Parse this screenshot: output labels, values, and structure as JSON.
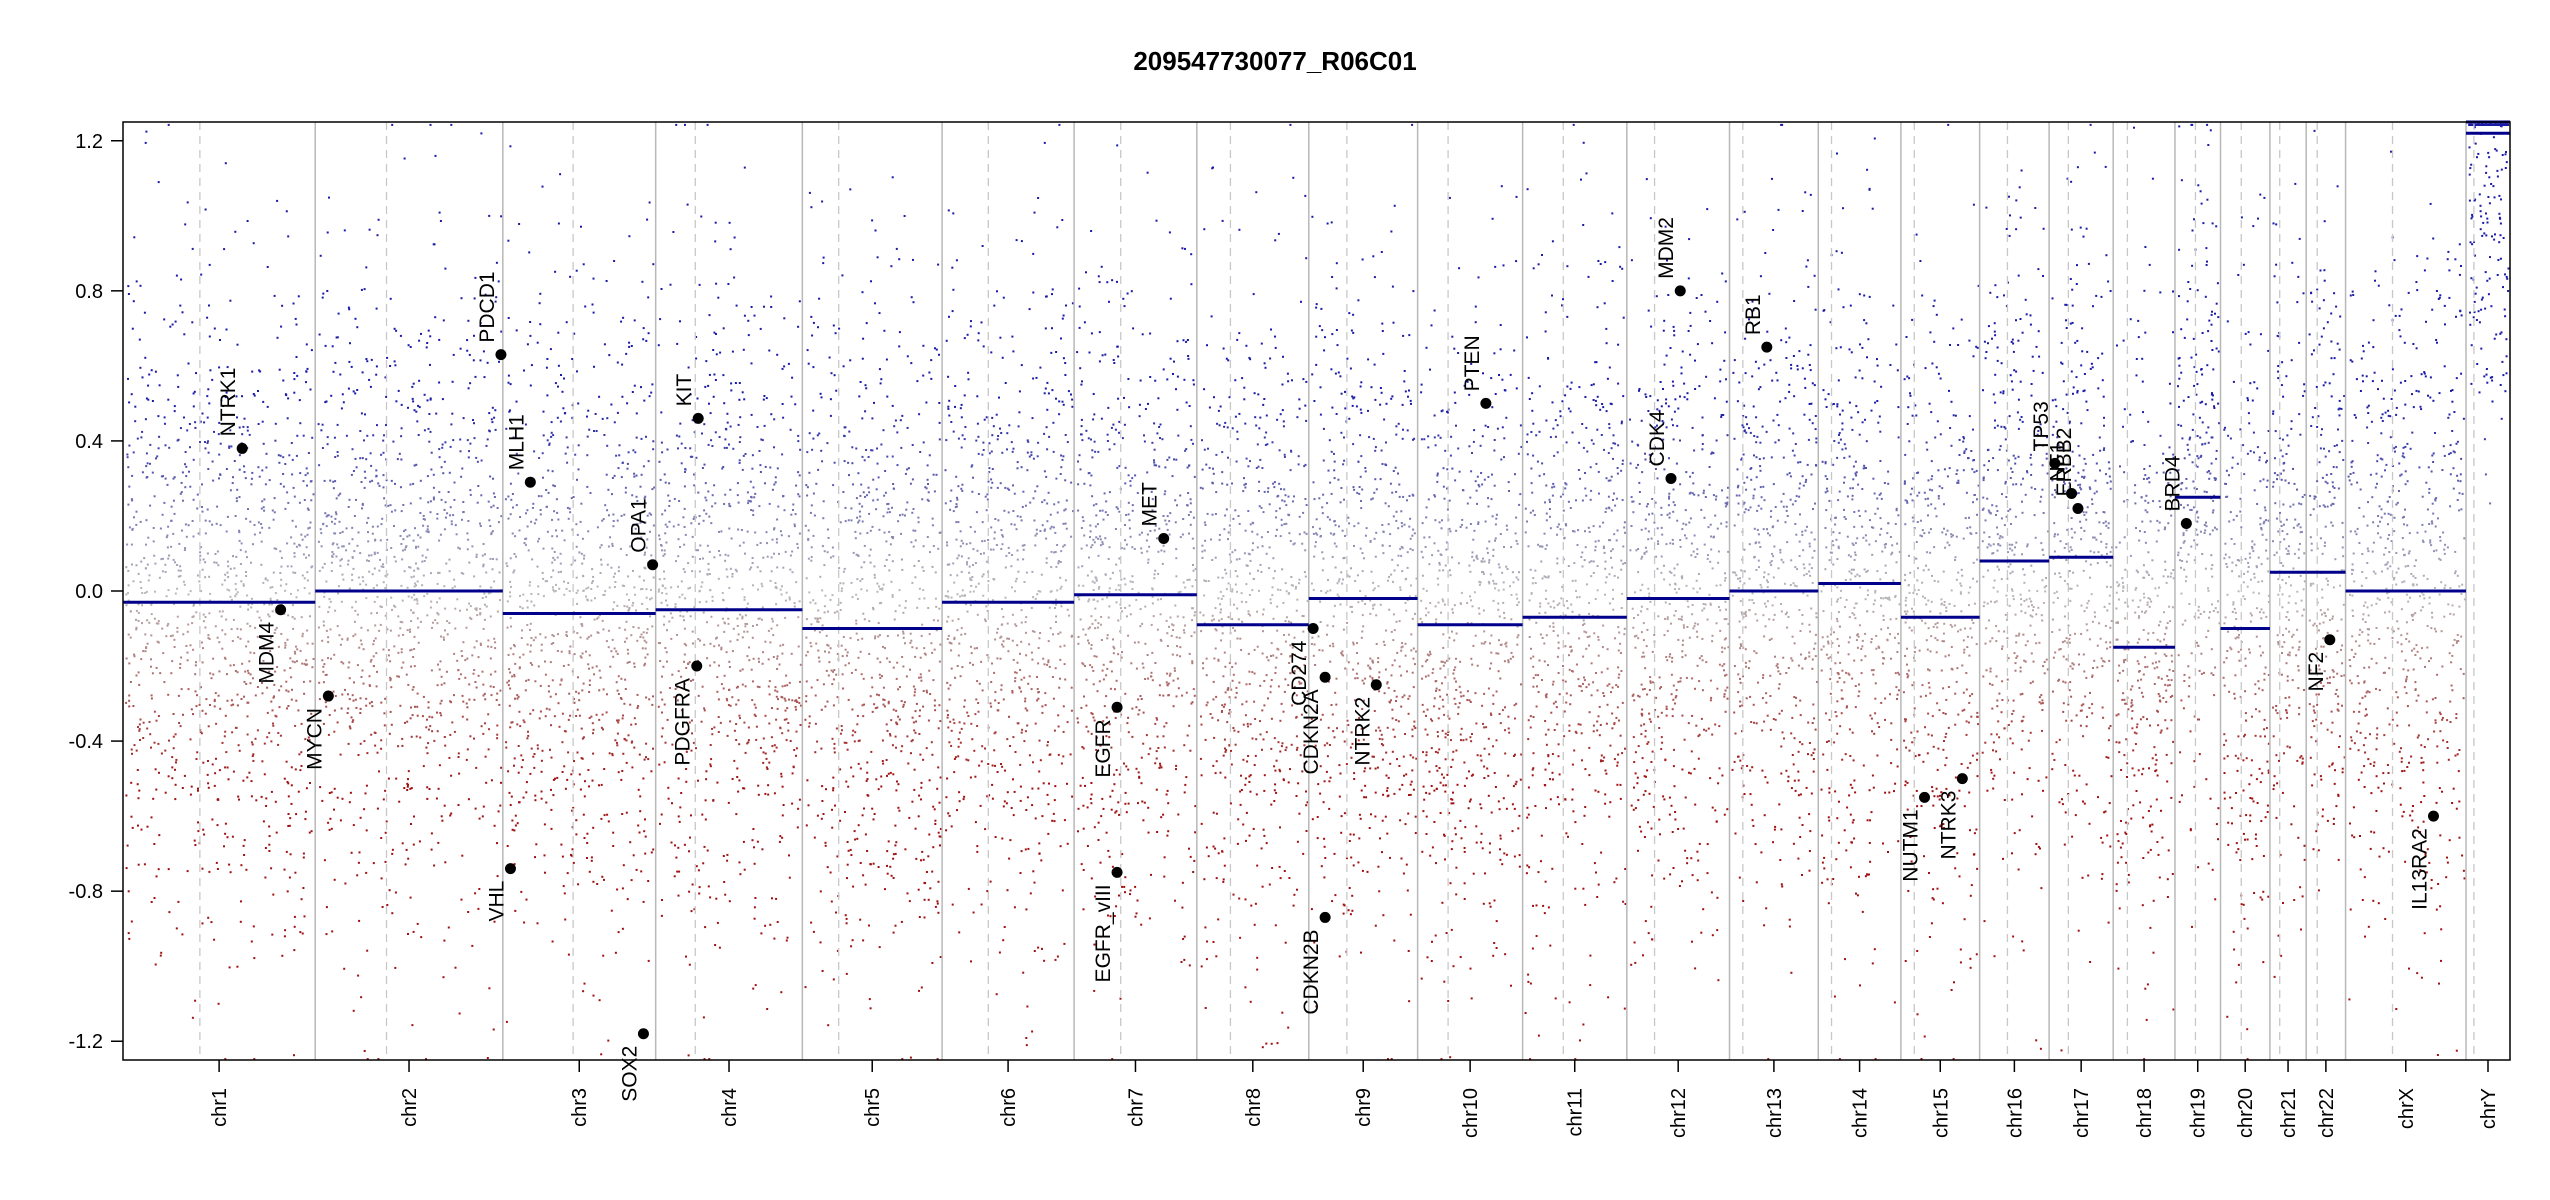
{
  "chart_data": {
    "type": "scatter",
    "title": "209547730077_R06C01",
    "xlabel": "",
    "ylabel": "",
    "ylim": [
      -1.25,
      1.25
    ],
    "yticks": [
      -1.2,
      -0.8,
      -0.4,
      0.0,
      0.4,
      0.8,
      1.2
    ],
    "ytick_labels": [
      "-1.2",
      "-0.8",
      "-0.4",
      "0.0",
      "0.4",
      "0.8",
      "1.2"
    ],
    "grid": false,
    "colors": {
      "gain": "#1a1aa8",
      "loss": "#a01010",
      "neutral": "#b0b0b0",
      "segment": "#00008b",
      "gene_point": "#000000",
      "chrom_border": "#b8b8b8",
      "centromere": "#c8c8c8"
    },
    "chromosomes": [
      {
        "name": "chr1",
        "len": 249,
        "cen": 0.4,
        "segments": [
          {
            "from": 0,
            "to": 1,
            "value": -0.03
          }
        ]
      },
      {
        "name": "chr2",
        "len": 243,
        "cen": 0.38,
        "segments": [
          {
            "from": 0,
            "to": 1,
            "value": 0.0
          }
        ]
      },
      {
        "name": "chr3",
        "len": 198,
        "cen": 0.46,
        "segments": [
          {
            "from": 0,
            "to": 1,
            "value": -0.06
          }
        ]
      },
      {
        "name": "chr4",
        "len": 190,
        "cen": 0.27,
        "segments": [
          {
            "from": 0,
            "to": 1,
            "value": -0.05
          }
        ]
      },
      {
        "name": "chr5",
        "len": 181,
        "cen": 0.26,
        "segments": [
          {
            "from": 0,
            "to": 1,
            "value": -0.1
          }
        ]
      },
      {
        "name": "chr6",
        "len": 171,
        "cen": 0.35,
        "segments": [
          {
            "from": 0,
            "to": 1,
            "value": -0.03
          }
        ]
      },
      {
        "name": "chr7",
        "len": 159,
        "cen": 0.38,
        "segments": [
          {
            "from": 0,
            "to": 1,
            "value": -0.01
          }
        ]
      },
      {
        "name": "chr8",
        "len": 145,
        "cen": 0.3,
        "segments": [
          {
            "from": 0,
            "to": 1,
            "value": -0.09
          }
        ]
      },
      {
        "name": "chr9",
        "len": 141,
        "cen": 0.35,
        "segments": [
          {
            "from": 0,
            "to": 1,
            "value": -0.02
          }
        ]
      },
      {
        "name": "chr10",
        "len": 136,
        "cen": 0.29,
        "segments": [
          {
            "from": 0,
            "to": 1,
            "value": -0.09
          }
        ]
      },
      {
        "name": "chr11",
        "len": 135,
        "cen": 0.39,
        "segments": [
          {
            "from": 0,
            "to": 1,
            "value": -0.07
          }
        ]
      },
      {
        "name": "chr12",
        "len": 133,
        "cen": 0.27,
        "segments": [
          {
            "from": 0,
            "to": 1,
            "value": -0.02
          }
        ]
      },
      {
        "name": "chr13",
        "len": 115,
        "cen": 0.15,
        "segments": [
          {
            "from": 0,
            "to": 1,
            "value": 0.0
          }
        ]
      },
      {
        "name": "chr14",
        "len": 107,
        "cen": 0.16,
        "segments": [
          {
            "from": 0,
            "to": 1,
            "value": 0.02
          }
        ]
      },
      {
        "name": "chr15",
        "len": 102,
        "cen": 0.17,
        "segments": [
          {
            "from": 0,
            "to": 1,
            "value": -0.07
          }
        ]
      },
      {
        "name": "chr16",
        "len": 90,
        "cen": 0.4,
        "segments": [
          {
            "from": 0,
            "to": 1,
            "value": 0.08
          }
        ]
      },
      {
        "name": "chr17",
        "len": 83,
        "cen": 0.3,
        "segments": [
          {
            "from": 0,
            "to": 1,
            "value": 0.09
          }
        ]
      },
      {
        "name": "chr18",
        "len": 80,
        "cen": 0.23,
        "segments": [
          {
            "from": 0,
            "to": 1,
            "value": -0.15
          }
        ]
      },
      {
        "name": "chr19",
        "len": 59,
        "cen": 0.45,
        "segments": [
          {
            "from": 0,
            "to": 1,
            "value": 0.25
          }
        ]
      },
      {
        "name": "chr20",
        "len": 64,
        "cen": 0.42,
        "segments": [
          {
            "from": 0,
            "to": 1,
            "value": -0.1
          }
        ]
      },
      {
        "name": "chr21",
        "len": 47,
        "cen": 0.27,
        "segments": [
          {
            "from": 0,
            "to": 1,
            "value": 0.05
          }
        ]
      },
      {
        "name": "chr22",
        "len": 51,
        "cen": 0.28,
        "segments": [
          {
            "from": 0,
            "to": 1,
            "value": 0.05
          }
        ]
      },
      {
        "name": "chrX",
        "len": 156,
        "cen": 0.39,
        "segments": [
          {
            "from": 0,
            "to": 1,
            "value": 0.0
          }
        ]
      },
      {
        "name": "chrY",
        "len": 57,
        "cen": 0.18,
        "segments": [
          {
            "from": 0,
            "to": 1,
            "value": 1.22
          }
        ]
      }
    ],
    "genes": [
      {
        "name": "NTRK1",
        "chr": "chr1",
        "pos": 0.62,
        "value": 0.38
      },
      {
        "name": "MDM4",
        "chr": "chr1",
        "pos": 0.82,
        "value": -0.05
      },
      {
        "name": "MYCN",
        "chr": "chr2",
        "pos": 0.07,
        "value": -0.28
      },
      {
        "name": "PDCD1",
        "chr": "chr2",
        "pos": 0.99,
        "value": 0.63
      },
      {
        "name": "VHL",
        "chr": "chr3",
        "pos": 0.05,
        "value": -0.74
      },
      {
        "name": "MLH1",
        "chr": "chr3",
        "pos": 0.18,
        "value": 0.29
      },
      {
        "name": "SOX2",
        "chr": "chr3",
        "pos": 0.92,
        "value": -1.18
      },
      {
        "name": "OPA1",
        "chr": "chr3",
        "pos": 0.98,
        "value": 0.07
      },
      {
        "name": "KIT",
        "chr": "chr4",
        "pos": 0.29,
        "value": 0.46
      },
      {
        "name": "PDGFRA",
        "chr": "chr4",
        "pos": 0.28,
        "value": -0.2
      },
      {
        "name": "EGFR",
        "chr": "chr7",
        "pos": 0.35,
        "value": -0.31
      },
      {
        "name": "EGFR_vIII",
        "chr": "chr7",
        "pos": 0.35,
        "value": -0.75
      },
      {
        "name": "MET",
        "chr": "chr7",
        "pos": 0.73,
        "value": 0.14
      },
      {
        "name": "CD274",
        "chr": "chr9",
        "pos": 0.04,
        "value": -0.1
      },
      {
        "name": "CDKN2A",
        "chr": "chr9",
        "pos": 0.15,
        "value": -0.23
      },
      {
        "name": "CDKN2B",
        "chr": "chr9",
        "pos": 0.15,
        "value": -0.87
      },
      {
        "name": "NTRK2",
        "chr": "chr9",
        "pos": 0.62,
        "value": -0.25
      },
      {
        "name": "PTEN",
        "chr": "chr10",
        "pos": 0.65,
        "value": 0.5
      },
      {
        "name": "CDK4",
        "chr": "chr12",
        "pos": 0.43,
        "value": 0.3
      },
      {
        "name": "MDM2",
        "chr": "chr12",
        "pos": 0.52,
        "value": 0.8
      },
      {
        "name": "RB1",
        "chr": "chr13",
        "pos": 0.42,
        "value": 0.65
      },
      {
        "name": "NUTM1",
        "chr": "chr15",
        "pos": 0.3,
        "value": -0.55
      },
      {
        "name": "NTRK3",
        "chr": "chr15",
        "pos": 0.78,
        "value": -0.5
      },
      {
        "name": "TP53",
        "chr": "chr17",
        "pos": 0.09,
        "value": 0.34
      },
      {
        "name": "NF1",
        "chr": "chr17",
        "pos": 0.35,
        "value": 0.26
      },
      {
        "name": "ERBB2",
        "chr": "chr17",
        "pos": 0.45,
        "value": 0.22
      },
      {
        "name": "BRD4",
        "chr": "chr19",
        "pos": 0.25,
        "value": 0.18
      },
      {
        "name": "NF2",
        "chr": "chr22",
        "pos": 0.6,
        "value": -0.13
      },
      {
        "name": "IL13RA2",
        "chr": "chrX",
        "pos": 0.73,
        "value": -0.6
      }
    ]
  }
}
